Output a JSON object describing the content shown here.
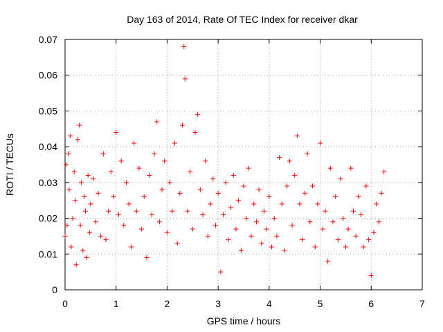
{
  "chart_data": {
    "type": "scatter",
    "title": "Day 163 of 2014, Rate Of TEC Index for receiver dkar",
    "xlabel": "GPS time / hours",
    "ylabel": "ROTI / TECUs",
    "xlim": [
      0,
      7
    ],
    "ylim": [
      0,
      0.07
    ],
    "xticks": [
      "0",
      "1",
      "2",
      "3",
      "4",
      "5",
      "6",
      "7"
    ],
    "yticks": [
      "0",
      "0.01",
      "0.02",
      "0.03",
      "0.04",
      "0.05",
      "0.06",
      "0.07"
    ],
    "grid": true,
    "marker": "+",
    "color": "#ff0000",
    "series": [
      {
        "name": "ROTI",
        "x": [
          0.0,
          0.02,
          0.04,
          0.06,
          0.08,
          0.1,
          0.12,
          0.15,
          0.18,
          0.2,
          0.22,
          0.25,
          0.28,
          0.3,
          0.32,
          0.35,
          0.38,
          0.4,
          0.42,
          0.45,
          0.48,
          0.5,
          0.55,
          0.6,
          0.65,
          0.7,
          0.75,
          0.8,
          0.85,
          0.9,
          0.95,
          1.0,
          1.05,
          1.1,
          1.15,
          1.2,
          1.25,
          1.3,
          1.35,
          1.4,
          1.45,
          1.5,
          1.55,
          1.6,
          1.65,
          1.7,
          1.75,
          1.8,
          1.85,
          1.9,
          1.95,
          2.0,
          2.05,
          2.1,
          2.15,
          2.2,
          2.25,
          2.3,
          2.33,
          2.35,
          2.4,
          2.45,
          2.5,
          2.55,
          2.6,
          2.65,
          2.7,
          2.75,
          2.8,
          2.85,
          2.9,
          2.95,
          3.0,
          3.05,
          3.1,
          3.15,
          3.2,
          3.25,
          3.3,
          3.35,
          3.4,
          3.45,
          3.5,
          3.55,
          3.6,
          3.65,
          3.7,
          3.75,
          3.8,
          3.85,
          3.9,
          3.95,
          4.0,
          4.05,
          4.1,
          4.15,
          4.2,
          4.25,
          4.3,
          4.35,
          4.4,
          4.45,
          4.5,
          4.55,
          4.6,
          4.65,
          4.7,
          4.75,
          4.8,
          4.85,
          4.9,
          4.95,
          5.0,
          5.05,
          5.1,
          5.15,
          5.2,
          5.25,
          5.3,
          5.35,
          5.4,
          5.45,
          5.5,
          5.55,
          5.6,
          5.65,
          5.7,
          5.75,
          5.8,
          5.85,
          5.9,
          5.95,
          6.0,
          6.05,
          6.1,
          6.15,
          6.2,
          6.25
        ],
        "y": [
          0.015,
          0.035,
          0.018,
          0.038,
          0.028,
          0.043,
          0.012,
          0.02,
          0.033,
          0.025,
          0.007,
          0.042,
          0.046,
          0.018,
          0.03,
          0.011,
          0.026,
          0.022,
          0.009,
          0.032,
          0.016,
          0.024,
          0.031,
          0.019,
          0.027,
          0.015,
          0.038,
          0.014,
          0.022,
          0.033,
          0.026,
          0.044,
          0.021,
          0.036,
          0.018,
          0.03,
          0.024,
          0.012,
          0.041,
          0.022,
          0.034,
          0.017,
          0.026,
          0.009,
          0.032,
          0.021,
          0.038,
          0.047,
          0.019,
          0.028,
          0.036,
          0.016,
          0.03,
          0.022,
          0.041,
          0.013,
          0.027,
          0.046,
          0.068,
          0.059,
          0.022,
          0.033,
          0.017,
          0.044,
          0.049,
          0.028,
          0.021,
          0.036,
          0.015,
          0.024,
          0.031,
          0.018,
          0.027,
          0.005,
          0.021,
          0.03,
          0.014,
          0.023,
          0.032,
          0.017,
          0.025,
          0.011,
          0.029,
          0.02,
          0.034,
          0.015,
          0.024,
          0.019,
          0.028,
          0.013,
          0.022,
          0.017,
          0.026,
          0.012,
          0.02,
          0.015,
          0.037,
          0.024,
          0.011,
          0.029,
          0.036,
          0.018,
          0.032,
          0.043,
          0.024,
          0.014,
          0.027,
          0.038,
          0.019,
          0.029,
          0.012,
          0.024,
          0.041,
          0.017,
          0.022,
          0.008,
          0.034,
          0.019,
          0.026,
          0.014,
          0.031,
          0.02,
          0.012,
          0.017,
          0.034,
          0.022,
          0.015,
          0.026,
          0.021,
          0.012,
          0.029,
          0.014,
          0.004,
          0.016,
          0.024,
          0.019,
          0.027,
          0.033
        ]
      }
    ]
  }
}
